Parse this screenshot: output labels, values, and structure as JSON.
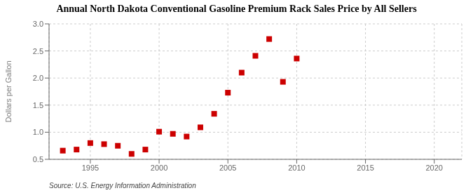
{
  "chart_data": {
    "type": "scatter",
    "title": "Annual North Dakota Conventional Gasoline Premium Rack Sales Price by All Sellers",
    "ylabel": "Dollars per Gallon",
    "annotations": [
      "Source: U.S. Energy Information Administration"
    ],
    "x": [
      1993,
      1994,
      1995,
      1996,
      1997,
      1998,
      1999,
      2000,
      2001,
      2002,
      2003,
      2004,
      2005,
      2006,
      2007,
      2008,
      2009,
      2010
    ],
    "values": [
      0.66,
      0.68,
      0.8,
      0.78,
      0.75,
      0.6,
      0.68,
      1.01,
      0.97,
      0.92,
      1.09,
      1.34,
      1.73,
      2.1,
      2.41,
      2.72,
      1.93,
      2.36
    ],
    "color": "#cc0000",
    "marker": "square",
    "xlim": [
      1992,
      2022
    ],
    "ylim": [
      0.5,
      3.0
    ],
    "xticks": [
      1995,
      2000,
      2005,
      2010,
      2015,
      2020
    ],
    "yticks": [
      0.5,
      {
        "value": 1,
        "label": "1.0"
      },
      1.5,
      {
        "value": 2,
        "label": "2.0"
      },
      2.5,
      {
        "value": 3,
        "label": "3.0"
      }
    ],
    "grid": true
  }
}
